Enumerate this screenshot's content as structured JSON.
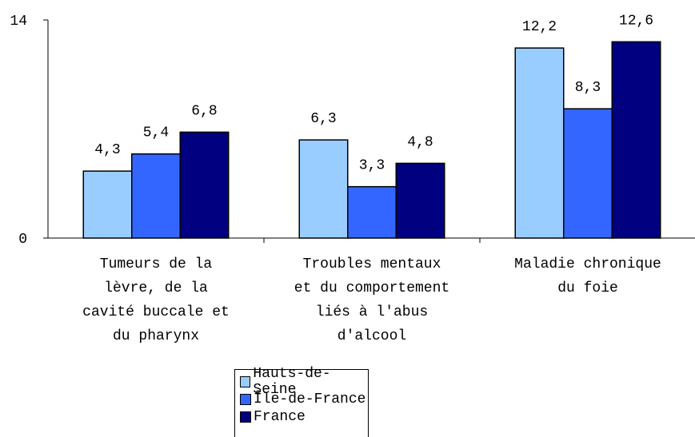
{
  "chart_data": {
    "type": "bar",
    "categories": [
      "Tumeurs de la lèvre, de la cavité buccale et du pharynx",
      "Troubles mentaux et du comportement liés à l'abus d'alcool",
      "Maladie chronique du foie"
    ],
    "series": [
      {
        "name": "Hauts-de-Seine",
        "color": "#99ccff",
        "values": [
          4.3,
          6.3,
          12.2
        ],
        "value_labels": [
          "4,3",
          "6,3",
          "12,2"
        ]
      },
      {
        "name": "Île-de-France",
        "color": "#3366ff",
        "values": [
          5.4,
          3.3,
          8.3
        ],
        "value_labels": [
          "5,4",
          "3,3",
          "8,3"
        ]
      },
      {
        "name": "France",
        "color": "#000080",
        "values": [
          6.8,
          4.8,
          12.6
        ],
        "value_labels": [
          "6,8",
          "4,8",
          "12,6"
        ]
      }
    ],
    "ylim": [
      0,
      14
    ],
    "yticks": [
      0,
      14
    ],
    "grid": false
  }
}
